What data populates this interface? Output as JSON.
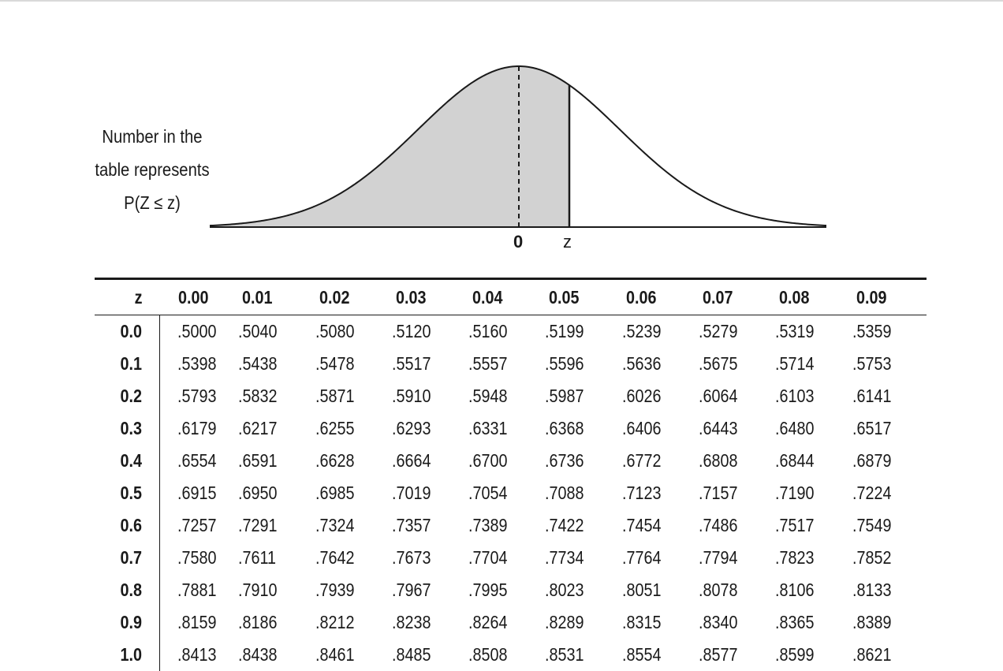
{
  "caption": {
    "line1": "Number in the",
    "line2": "table represents",
    "line3": "P(Z ≤ z)"
  },
  "diagram": {
    "label_zero": "0",
    "label_z": "z",
    "shade_color": "#d2d2d2",
    "line_color": "#1a1a1a"
  },
  "table": {
    "headers": [
      "z",
      "0.00",
      "0.01",
      "0.02",
      "0.03",
      "0.04",
      "0.05",
      "0.06",
      "0.07",
      "0.08",
      "0.09"
    ],
    "rows": [
      [
        "0.0",
        ".5000",
        ".5040",
        ".5080",
        ".5120",
        ".5160",
        ".5199",
        ".5239",
        ".5279",
        ".5319",
        ".5359"
      ],
      [
        "0.1",
        ".5398",
        ".5438",
        ".5478",
        ".5517",
        ".5557",
        ".5596",
        ".5636",
        ".5675",
        ".5714",
        ".5753"
      ],
      [
        "0.2",
        ".5793",
        ".5832",
        ".5871",
        ".5910",
        ".5948",
        ".5987",
        ".6026",
        ".6064",
        ".6103",
        ".6141"
      ],
      [
        "0.3",
        ".6179",
        ".6217",
        ".6255",
        ".6293",
        ".6331",
        ".6368",
        ".6406",
        ".6443",
        ".6480",
        ".6517"
      ],
      [
        "0.4",
        ".6554",
        ".6591",
        ".6628",
        ".6664",
        ".6700",
        ".6736",
        ".6772",
        ".6808",
        ".6844",
        ".6879"
      ],
      [
        "0.5",
        ".6915",
        ".6950",
        ".6985",
        ".7019",
        ".7054",
        ".7088",
        ".7123",
        ".7157",
        ".7190",
        ".7224"
      ],
      [
        "0.6",
        ".7257",
        ".7291",
        ".7324",
        ".7357",
        ".7389",
        ".7422",
        ".7454",
        ".7486",
        ".7517",
        ".7549"
      ],
      [
        "0.7",
        ".7580",
        ".7611",
        ".7642",
        ".7673",
        ".7704",
        ".7734",
        ".7764",
        ".7794",
        ".7823",
        ".7852"
      ],
      [
        "0.8",
        ".7881",
        ".7910",
        ".7939",
        ".7967",
        ".7995",
        ".8023",
        ".8051",
        ".8078",
        ".8106",
        ".8133"
      ],
      [
        "0.9",
        ".8159",
        ".8186",
        ".8212",
        ".8238",
        ".8264",
        ".8289",
        ".8315",
        ".8340",
        ".8365",
        ".8389"
      ],
      [
        "1.0",
        ".8413",
        ".8438",
        ".8461",
        ".8485",
        ".8508",
        ".8531",
        ".8554",
        ".8577",
        ".8599",
        ".8621"
      ]
    ]
  }
}
